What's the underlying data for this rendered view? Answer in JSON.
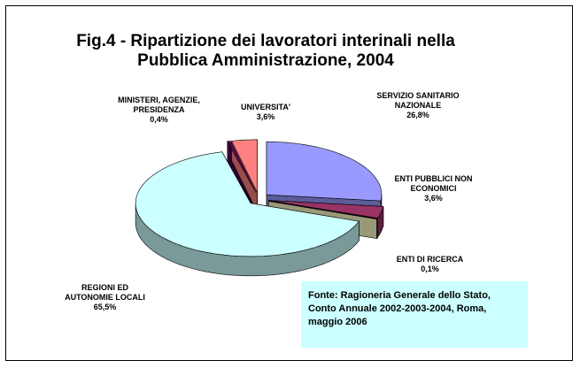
{
  "chart_data": {
    "type": "pie3d",
    "title": "Fig.4 - Ripartizione dei lavoratori interinali nella Pubblica Amministrazione, 2004",
    "categories": [
      "SERVIZIO SANITARIO NAZIONALE",
      "ENTI PUBBLICI NON ECONOMICI",
      "ENTI DI RICERCA",
      "REGIONI ED AUTONOMIE LOCALI",
      "MINISTERI, AGENZIE, PRESIDENZA",
      "UNIVERSITA'"
    ],
    "values": [
      26.8,
      3.6,
      0.1,
      65.5,
      0.4,
      3.6
    ],
    "value_labels": [
      "26,8%",
      "3,6%",
      "0,1%",
      "65,5%",
      "0,4%",
      "3,6%"
    ],
    "colors": [
      "#9999ff",
      "#993366",
      "#ffffcc",
      "#ccffff",
      "#660066",
      "#ff8080"
    ],
    "source": "Fonte: Ragioneria Generale dello Stato, Conto Annuale 2002-2003-2004, Roma, maggio 2006"
  }
}
